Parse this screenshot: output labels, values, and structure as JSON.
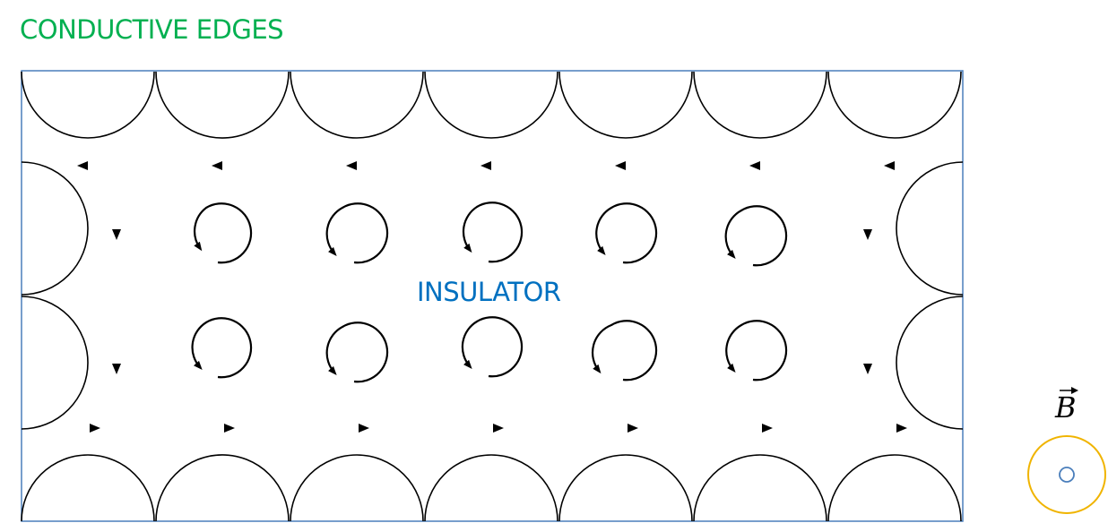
{
  "header": {
    "title": "CONDUCTIVE EDGES"
  },
  "material": {
    "label": "INSULATOR"
  },
  "field": {
    "symbol": "B",
    "direction": "out-of-page"
  },
  "colors": {
    "title": "#00b050",
    "label": "#0070c0",
    "frame": "#4a7ebb",
    "field_ring": "#f0b400",
    "field_dot": "#4a7ebb",
    "stroke": "#000000"
  }
}
